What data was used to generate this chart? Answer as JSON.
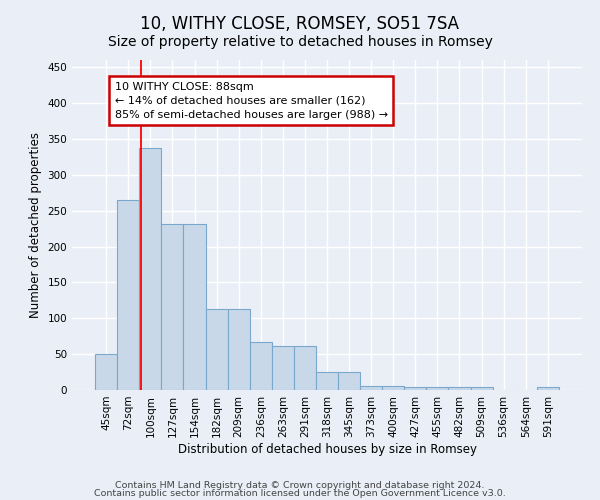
{
  "title": "10, WITHY CLOSE, ROMSEY, SO51 7SA",
  "subtitle": "Size of property relative to detached houses in Romsey",
  "xlabel": "Distribution of detached houses by size in Romsey",
  "ylabel": "Number of detached properties",
  "categories": [
    "45sqm",
    "72sqm",
    "100sqm",
    "127sqm",
    "154sqm",
    "182sqm",
    "209sqm",
    "236sqm",
    "263sqm",
    "291sqm",
    "318sqm",
    "345sqm",
    "373sqm",
    "400sqm",
    "427sqm",
    "455sqm",
    "482sqm",
    "509sqm",
    "536sqm",
    "564sqm",
    "591sqm"
  ],
  "bar_heights": [
    50,
    265,
    338,
    232,
    232,
    113,
    113,
    67,
    62,
    62,
    25,
    25,
    6,
    5,
    4,
    4,
    4,
    4,
    0,
    0,
    4
  ],
  "bar_color": "#c8d8e8",
  "bar_edge_color": "#7aa8cc",
  "bar_edge_width": 0.8,
  "ylim": [
    0,
    460
  ],
  "yticks": [
    0,
    50,
    100,
    150,
    200,
    250,
    300,
    350,
    400,
    450
  ],
  "red_line_x": 1.57,
  "annotation_line1": "10 WITHY CLOSE: 88sqm",
  "annotation_line2": "← 14% of detached houses are smaller (162)",
  "annotation_line3": "85% of semi-detached houses are larger (988) →",
  "annotation_box_color": "#ffffff",
  "annotation_box_edge_color": "#cc0000",
  "footnote1": "Contains HM Land Registry data © Crown copyright and database right 2024.",
  "footnote2": "Contains public sector information licensed under the Open Government Licence v3.0.",
  "background_color": "#eaeff7",
  "grid_color": "#ffffff",
  "title_fontsize": 12,
  "subtitle_fontsize": 10,
  "axis_label_fontsize": 8.5,
  "tick_fontsize": 7.5,
  "annotation_fontsize": 8,
  "footnote_fontsize": 6.8
}
